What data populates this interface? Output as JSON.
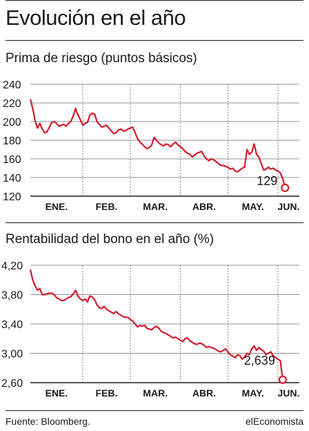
{
  "page_title": "Evolución en el año",
  "footer": {
    "source": "Fuente: Bloomberg.",
    "brand": "elEconomista"
  },
  "colors": {
    "line": "#d7182a",
    "text": "#1a1a1a",
    "grid": "#6b6b6b"
  },
  "chart_data": [
    {
      "type": "line",
      "title": "Prima de riesgo (puntos básicos)",
      "xlabel": "",
      "ylabel": "",
      "ylim": [
        120,
        240
      ],
      "yticks": [
        240,
        220,
        200,
        180,
        160,
        140,
        120
      ],
      "ytick_labels": [
        "240",
        "220",
        "200",
        "180",
        "160",
        "140",
        "120"
      ],
      "xlim": [
        0,
        113
      ],
      "months": [
        {
          "label": "ENE.",
          "start": 0
        },
        {
          "label": "FEB.",
          "start": 22
        },
        {
          "label": "MAR.",
          "start": 42
        },
        {
          "label": "ABR.",
          "start": 63
        },
        {
          "label": "MAY.",
          "start": 83
        },
        {
          "label": "JUN.",
          "start": 104
        }
      ],
      "grid": true,
      "series": [
        {
          "values": [
            224,
            214,
            201,
            193,
            198,
            192,
            188,
            189,
            194,
            199,
            200,
            198,
            195,
            196,
            197,
            195,
            198,
            200,
            206,
            214,
            207,
            202,
            196,
            198,
            199,
            207,
            209,
            208,
            200,
            197,
            194,
            195,
            196,
            193,
            190,
            187,
            188,
            191,
            192,
            190,
            190,
            192,
            193,
            194,
            188,
            182,
            178,
            176,
            173,
            171,
            172,
            175,
            183,
            180,
            177,
            175,
            174,
            176,
            175,
            173,
            176,
            178,
            175,
            173,
            171,
            168,
            166,
            165,
            162,
            164,
            166,
            167,
            168,
            163,
            160,
            158,
            160,
            159,
            157,
            155,
            153,
            153,
            152,
            151,
            149,
            150,
            147,
            146,
            148,
            150,
            151,
            170,
            165,
            167,
            176,
            165,
            162,
            155,
            148,
            149,
            151,
            149,
            150,
            148,
            147,
            145,
            139,
            129
          ],
          "last_label": "129"
        }
      ]
    },
    {
      "type": "line",
      "title": "Rentabilidad del bono en el año (%)",
      "xlabel": "",
      "ylabel": "",
      "ylim": [
        2.6,
        4.2
      ],
      "yticks": [
        4.2,
        3.8,
        3.4,
        3.0,
        2.6
      ],
      "ytick_labels": [
        "4,20",
        "3,80",
        "3,40",
        "3,00",
        "2,60"
      ],
      "xlim": [
        0,
        113
      ],
      "months": [
        {
          "label": "ENE.",
          "start": 0
        },
        {
          "label": "FEB.",
          "start": 22
        },
        {
          "label": "MAR.",
          "start": 42
        },
        {
          "label": "ABR.",
          "start": 63
        },
        {
          "label": "MAY.",
          "start": 83
        },
        {
          "label": "JUN.",
          "start": 104
        }
      ],
      "grid": true,
      "series": [
        {
          "values": [
            4.14,
            4.0,
            3.92,
            3.86,
            3.88,
            3.8,
            3.8,
            3.81,
            3.82,
            3.82,
            3.8,
            3.76,
            3.74,
            3.72,
            3.72,
            3.74,
            3.76,
            3.77,
            3.81,
            3.86,
            3.78,
            3.74,
            3.72,
            3.74,
            3.7,
            3.78,
            3.77,
            3.73,
            3.66,
            3.62,
            3.61,
            3.64,
            3.6,
            3.58,
            3.56,
            3.54,
            3.57,
            3.54,
            3.52,
            3.5,
            3.49,
            3.49,
            3.46,
            3.44,
            3.4,
            3.36,
            3.38,
            3.37,
            3.38,
            3.34,
            3.33,
            3.32,
            3.35,
            3.37,
            3.34,
            3.3,
            3.28,
            3.27,
            3.25,
            3.23,
            3.21,
            3.22,
            3.2,
            3.18,
            3.16,
            3.2,
            3.21,
            3.17,
            3.15,
            3.13,
            3.12,
            3.14,
            3.13,
            3.11,
            3.08,
            3.09,
            3.08,
            3.07,
            3.05,
            3.03,
            3.02,
            3.04,
            3.06,
            3.02,
            2.98,
            2.96,
            2.94,
            2.98,
            2.97,
            2.92,
            2.95,
            3.0,
            2.98,
            3.06,
            3.1,
            3.04,
            3.08,
            3.05,
            3.03,
            2.98,
            3.0,
            3.02,
            2.97,
            2.94,
            2.92,
            2.9,
            2.64
          ],
          "last_label": "2,639"
        }
      ]
    }
  ]
}
